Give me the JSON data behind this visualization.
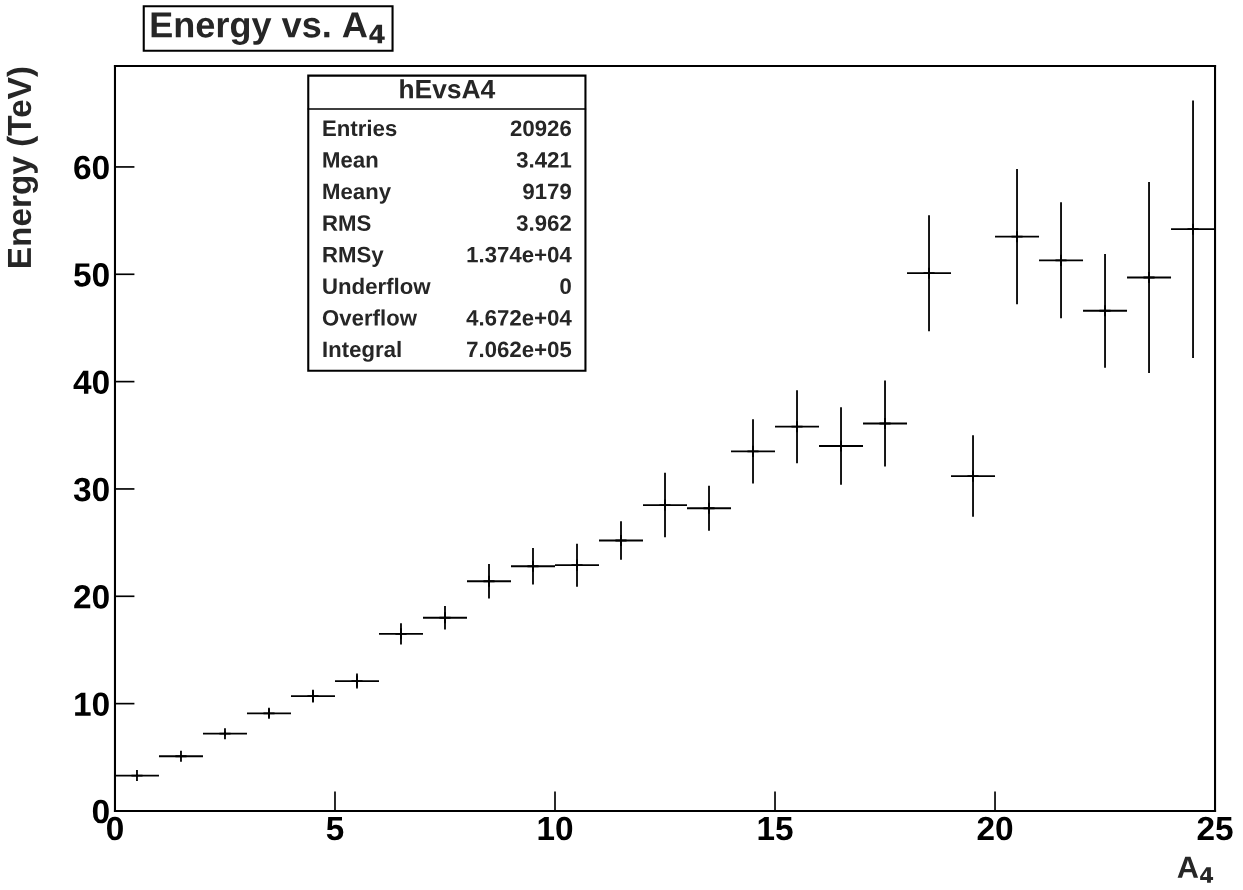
{
  "chart_data": {
    "type": "scatter",
    "title": "Energy vs. A$_{4}$",
    "xlabel": "A$_{4}$",
    "ylabel": "Energy (TeV)",
    "marker": "cross",
    "grid": false,
    "x": [
      0.5,
      1.5,
      2.5,
      3.5,
      4.5,
      5.5,
      6.5,
      7.5,
      8.5,
      9.5,
      10.5,
      11.5,
      12.5,
      13.5,
      14.5,
      15.5,
      16.5,
      17.5,
      18.5,
      19.5,
      20.5,
      21.5,
      22.5,
      23.5,
      24.5
    ],
    "values": [
      3.3,
      5.1,
      7.2,
      9.1,
      10.7,
      12.1,
      16.5,
      18.0,
      21.4,
      22.8,
      22.9,
      25.2,
      28.5,
      28.2,
      33.5,
      35.8,
      34.0,
      36.1,
      50.1,
      31.2,
      53.5,
      51.3,
      46.6,
      49.7,
      54.2
    ],
    "errors": [
      0.1,
      0.1,
      0.2,
      0.4,
      0.6,
      0.7,
      1.0,
      1.1,
      1.6,
      1.7,
      2.0,
      1.8,
      3.0,
      2.1,
      3.0,
      3.4,
      3.6,
      4.0,
      5.4,
      3.8,
      6.3,
      5.4,
      5.3,
      8.9,
      12.0
    ],
    "xerrors": [
      0.5,
      0.5,
      0.5,
      0.5,
      0.5,
      0.5,
      0.5,
      0.5,
      0.5,
      0.5,
      0.5,
      0.5,
      0.5,
      0.5,
      0.5,
      0.5,
      0.5,
      0.5,
      0.5,
      0.5,
      0.5,
      0.5,
      0.5,
      0.5,
      0.5
    ],
    "xlim": [
      0,
      25
    ],
    "ylim": [
      0,
      69.4
    ],
    "xticks": [
      0,
      5,
      10,
      15,
      20,
      25
    ],
    "yticks": [
      0,
      10,
      20,
      30,
      40,
      50,
      60
    ],
    "annotations": [
      "hEvsA4",
      "Entries",
      "20926",
      "Mean",
      "3.421",
      "Meany",
      "9179",
      "RMS",
      "3.962",
      "RMSy",
      "1.374e+04",
      "Underflow",
      "0",
      "Overflow",
      "4.672e+04",
      "Integral",
      "7.062e+05"
    ]
  }
}
